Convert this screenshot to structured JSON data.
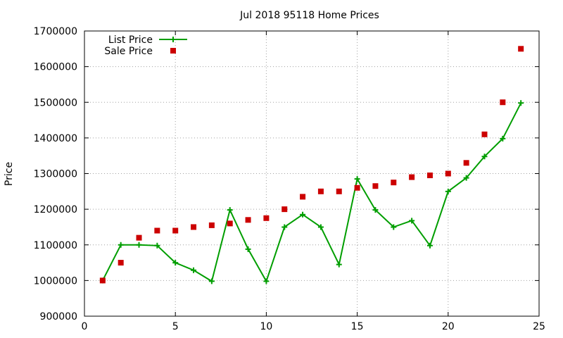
{
  "chart_data": {
    "type": "line",
    "title": "Jul 2018 95118 Home Prices",
    "xlabel": "",
    "ylabel": "Price",
    "xlim": [
      0,
      25
    ],
    "ylim": [
      900000,
      1700000
    ],
    "x_ticks": [
      "0",
      "5",
      "10",
      "15",
      "20",
      "25"
    ],
    "y_ticks": [
      "900000",
      "1000000",
      "1100000",
      "1200000",
      "1300000",
      "1400000",
      "1500000",
      "1600000",
      "1700000"
    ],
    "grid": true,
    "legend_position": "top-left",
    "series": [
      {
        "name": "List Price",
        "style": "line-plus",
        "color": "#009e00",
        "x": [
          1,
          2,
          3,
          4,
          5,
          6,
          7,
          8,
          9,
          10,
          11,
          12,
          13,
          14,
          15,
          16,
          17,
          18,
          19,
          20,
          21,
          22,
          23,
          24
        ],
        "values": [
          1000000,
          1100000,
          1100000,
          1098000,
          1050000,
          1029000,
          998000,
          1198000,
          1088000,
          998000,
          1150000,
          1185000,
          1150000,
          1045000,
          1285000,
          1198000,
          1150000,
          1168000,
          1098000,
          1250000,
          1288000,
          1348000,
          1398000,
          1498000
        ]
      },
      {
        "name": "Sale Price",
        "style": "square-markers",
        "color": "#cc0000",
        "x": [
          1,
          2,
          3,
          4,
          5,
          6,
          7,
          8,
          9,
          10,
          11,
          12,
          13,
          14,
          15,
          16,
          17,
          18,
          19,
          20,
          21,
          22,
          23,
          24
        ],
        "values": [
          1000000,
          1050000,
          1120000,
          1140000,
          1140000,
          1150000,
          1155000,
          1160000,
          1170000,
          1175000,
          1200000,
          1235000,
          1250000,
          1250000,
          1260000,
          1265000,
          1275000,
          1290000,
          1295000,
          1300000,
          1330000,
          1410000,
          1500000,
          1650000
        ]
      }
    ]
  }
}
